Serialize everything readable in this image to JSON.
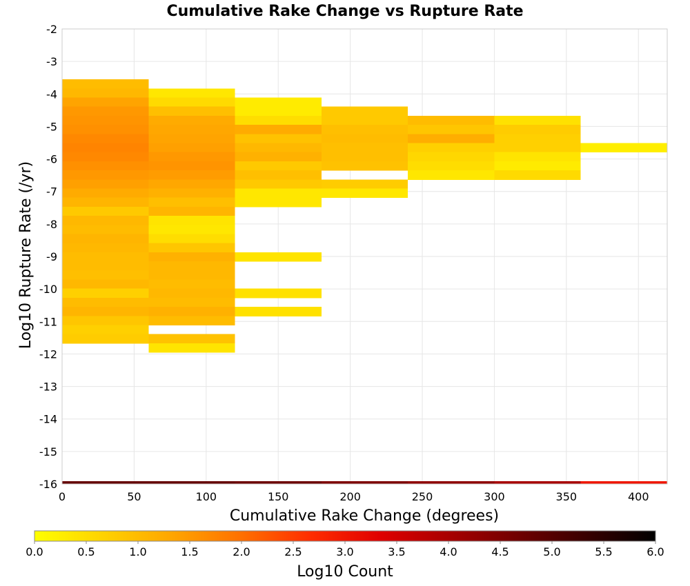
{
  "chart_data": {
    "type": "heatmap",
    "title": "Cumulative Rake Change vs Rupture Rate",
    "xlabel": "Cumulative Rake Change (degrees)",
    "ylabel": "Log10 Rupture Rate (/yr)",
    "xlim": [
      0,
      420
    ],
    "ylim": [
      -16,
      -2
    ],
    "x_ticks": [
      0,
      50,
      100,
      150,
      200,
      250,
      300,
      350,
      400
    ],
    "y_ticks": [
      -16,
      -15,
      -14,
      -13,
      -12,
      -11,
      -10,
      -9,
      -8,
      -7,
      -6,
      -5,
      -4,
      -3,
      -2
    ],
    "x_bin_width": 60,
    "y_bin_height": 0.28,
    "grid": true,
    "colorbar": {
      "label": "Log10 Count",
      "range": [
        0,
        6
      ],
      "ticks": [
        "0.0",
        "0.5",
        "1.0",
        "1.5",
        "2.0",
        "2.5",
        "3.0",
        "3.5",
        "4.0",
        "4.5",
        "5.0",
        "5.5",
        "6.0"
      ],
      "palette": [
        "#ffff00",
        "#ffd200",
        "#ffa500",
        "#ff7000",
        "#ff2d00",
        "#e00000",
        "#a80000",
        "#700000",
        "#380000",
        "#000000"
      ]
    },
    "columns": [
      {
        "x_start": 0,
        "cells": [
          {
            "y": -3.55,
            "v": 1.0
          },
          {
            "y": -3.83,
            "v": 1.05
          },
          {
            "y": -4.11,
            "v": 1.35
          },
          {
            "y": -4.39,
            "v": 1.5
          },
          {
            "y": -4.67,
            "v": 1.55
          },
          {
            "y": -4.95,
            "v": 1.6
          },
          {
            "y": -5.23,
            "v": 1.7
          },
          {
            "y": -5.51,
            "v": 1.75
          },
          {
            "y": -5.79,
            "v": 1.7
          },
          {
            "y": -6.07,
            "v": 1.6
          },
          {
            "y": -6.35,
            "v": 1.5
          },
          {
            "y": -6.63,
            "v": 1.4
          },
          {
            "y": -6.91,
            "v": 1.25
          },
          {
            "y": -7.19,
            "v": 1.1
          },
          {
            "y": -7.47,
            "v": 0.8
          },
          {
            "y": -7.75,
            "v": 1.05
          },
          {
            "y": -8.03,
            "v": 1.0
          },
          {
            "y": -8.31,
            "v": 1.1
          },
          {
            "y": -8.59,
            "v": 1.05
          },
          {
            "y": -8.87,
            "v": 1.0
          },
          {
            "y": -9.15,
            "v": 1.0
          },
          {
            "y": -9.43,
            "v": 0.95
          },
          {
            "y": -9.71,
            "v": 1.05
          },
          {
            "y": -9.99,
            "v": 0.7
          },
          {
            "y": -10.27,
            "v": 1.0
          },
          {
            "y": -10.55,
            "v": 1.1
          },
          {
            "y": -10.83,
            "v": 0.85
          },
          {
            "y": -11.11,
            "v": 0.7
          },
          {
            "y": -11.39,
            "v": 0.75
          }
        ]
      },
      {
        "x_start": 60,
        "cells": [
          {
            "y": -3.83,
            "v": 0.35
          },
          {
            "y": -4.11,
            "v": 0.55
          },
          {
            "y": -4.39,
            "v": 0.95
          },
          {
            "y": -4.67,
            "v": 1.25
          },
          {
            "y": -4.95,
            "v": 1.3
          },
          {
            "y": -5.23,
            "v": 1.35
          },
          {
            "y": -5.51,
            "v": 1.4
          },
          {
            "y": -5.79,
            "v": 1.5
          },
          {
            "y": -6.07,
            "v": 1.55
          },
          {
            "y": -6.35,
            "v": 1.45
          },
          {
            "y": -6.63,
            "v": 1.3
          },
          {
            "y": -6.91,
            "v": 1.15
          },
          {
            "y": -7.19,
            "v": 0.95
          },
          {
            "y": -7.47,
            "v": 1.1
          },
          {
            "y": -7.75,
            "v": 0.4
          },
          {
            "y": -8.03,
            "v": 0.35
          },
          {
            "y": -8.31,
            "v": 0.5
          },
          {
            "y": -8.59,
            "v": 0.85
          },
          {
            "y": -8.87,
            "v": 1.15
          },
          {
            "y": -9.15,
            "v": 1.05
          },
          {
            "y": -9.43,
            "v": 1.05
          },
          {
            "y": -9.71,
            "v": 1.0
          },
          {
            "y": -9.99,
            "v": 1.05
          },
          {
            "y": -10.27,
            "v": 1.0
          },
          {
            "y": -10.55,
            "v": 1.15
          },
          {
            "y": -10.83,
            "v": 1.0
          },
          {
            "y": -11.39,
            "v": 0.9
          },
          {
            "y": -11.67,
            "v": 0.4
          }
        ]
      },
      {
        "x_start": 120,
        "cells": [
          {
            "y": -4.11,
            "v": 0.3
          },
          {
            "y": -4.39,
            "v": 0.3
          },
          {
            "y": -4.67,
            "v": 0.5
          },
          {
            "y": -4.95,
            "v": 1.25
          },
          {
            "y": -5.23,
            "v": 0.9
          },
          {
            "y": -5.51,
            "v": 1.05
          },
          {
            "y": -5.79,
            "v": 1.15
          },
          {
            "y": -6.07,
            "v": 0.8
          },
          {
            "y": -6.35,
            "v": 0.95
          },
          {
            "y": -6.63,
            "v": 0.8
          },
          {
            "y": -6.91,
            "v": 0.35
          },
          {
            "y": -7.19,
            "v": 0.35
          },
          {
            "y": -8.87,
            "v": 0.4
          },
          {
            "y": -9.99,
            "v": 0.45
          },
          {
            "y": -10.55,
            "v": 0.45
          }
        ]
      },
      {
        "x_start": 180,
        "cells": [
          {
            "y": -4.39,
            "v": 0.8
          },
          {
            "y": -4.67,
            "v": 0.8
          },
          {
            "y": -4.95,
            "v": 0.95
          },
          {
            "y": -5.23,
            "v": 1.0
          },
          {
            "y": -5.51,
            "v": 0.95
          },
          {
            "y": -5.79,
            "v": 0.95
          },
          {
            "y": -6.07,
            "v": 0.9
          },
          {
            "y": -6.63,
            "v": 0.75
          },
          {
            "y": -6.91,
            "v": 0.35
          }
        ]
      },
      {
        "x_start": 240,
        "cells": [
          {
            "y": -4.67,
            "v": 1.0
          },
          {
            "y": -4.95,
            "v": 0.85
          },
          {
            "y": -5.23,
            "v": 1.2
          },
          {
            "y": -5.51,
            "v": 0.7
          },
          {
            "y": -5.79,
            "v": 0.6
          },
          {
            "y": -6.07,
            "v": 0.5
          },
          {
            "y": -6.35,
            "v": 0.35
          }
        ]
      },
      {
        "x_start": 300,
        "cells": [
          {
            "y": -4.67,
            "v": 0.45
          },
          {
            "y": -4.95,
            "v": 0.75
          },
          {
            "y": -5.23,
            "v": 0.7
          },
          {
            "y": -5.51,
            "v": 0.7
          },
          {
            "y": -5.79,
            "v": 0.4
          },
          {
            "y": -6.07,
            "v": 0.3
          },
          {
            "y": -6.35,
            "v": 0.55
          }
        ]
      },
      {
        "x_start": 360,
        "cells": [
          {
            "y": -5.51,
            "v": 0.25
          }
        ]
      }
    ],
    "totals_row": {
      "y": -15.92,
      "v": [
        4.8,
        4.8,
        4.7,
        4.5,
        4.3,
        4.0,
        3.0
      ]
    }
  }
}
